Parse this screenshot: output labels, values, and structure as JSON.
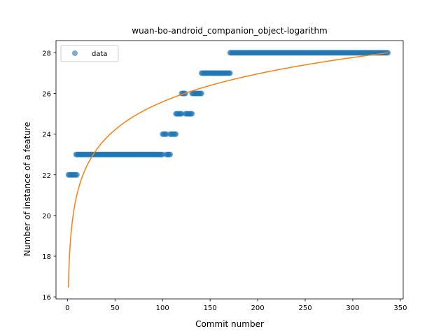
{
  "chart_data": {
    "type": "scatter",
    "title": "wuan-bo-android_companion_object-logarithm",
    "xlabel": "Commit number",
    "ylabel": "Number of instance of a feature",
    "xlim": [
      -12,
      353
    ],
    "ylim": [
      15.9,
      28.6
    ],
    "x_ticks": [
      0,
      50,
      100,
      150,
      200,
      250,
      300,
      350
    ],
    "y_ticks": [
      16,
      18,
      20,
      22,
      24,
      26,
      28
    ],
    "grid": false,
    "legend": {
      "placement": "upper-left",
      "entries": [
        "data"
      ]
    },
    "series": [
      {
        "name": "data",
        "kind": "points",
        "color": "#1f77b4",
        "segments": [
          {
            "x_start": 1,
            "x_end": 10,
            "y": 22
          },
          {
            "x_start": 9,
            "x_end": 100,
            "y": 23
          },
          {
            "x_start": 100,
            "x_end": 104,
            "y": 24
          },
          {
            "x_start": 104,
            "x_end": 108,
            "y": 23
          },
          {
            "x_start": 108,
            "x_end": 114,
            "y": 24
          },
          {
            "x_start": 114,
            "x_end": 120,
            "y": 25
          },
          {
            "x_start": 120,
            "x_end": 124,
            "y": 26
          },
          {
            "x_start": 124,
            "x_end": 131,
            "y": 25
          },
          {
            "x_start": 131,
            "x_end": 141,
            "y": 26
          },
          {
            "x_start": 141,
            "x_end": 171,
            "y": 27
          },
          {
            "x_start": 171,
            "x_end": 337,
            "y": 28
          }
        ]
      },
      {
        "kind": "logarithmic-fit",
        "color": "#ff7f0e",
        "x_range": [
          1,
          337
        ],
        "y_at_start": 16.45,
        "y_at_end": 28.0
      }
    ]
  }
}
